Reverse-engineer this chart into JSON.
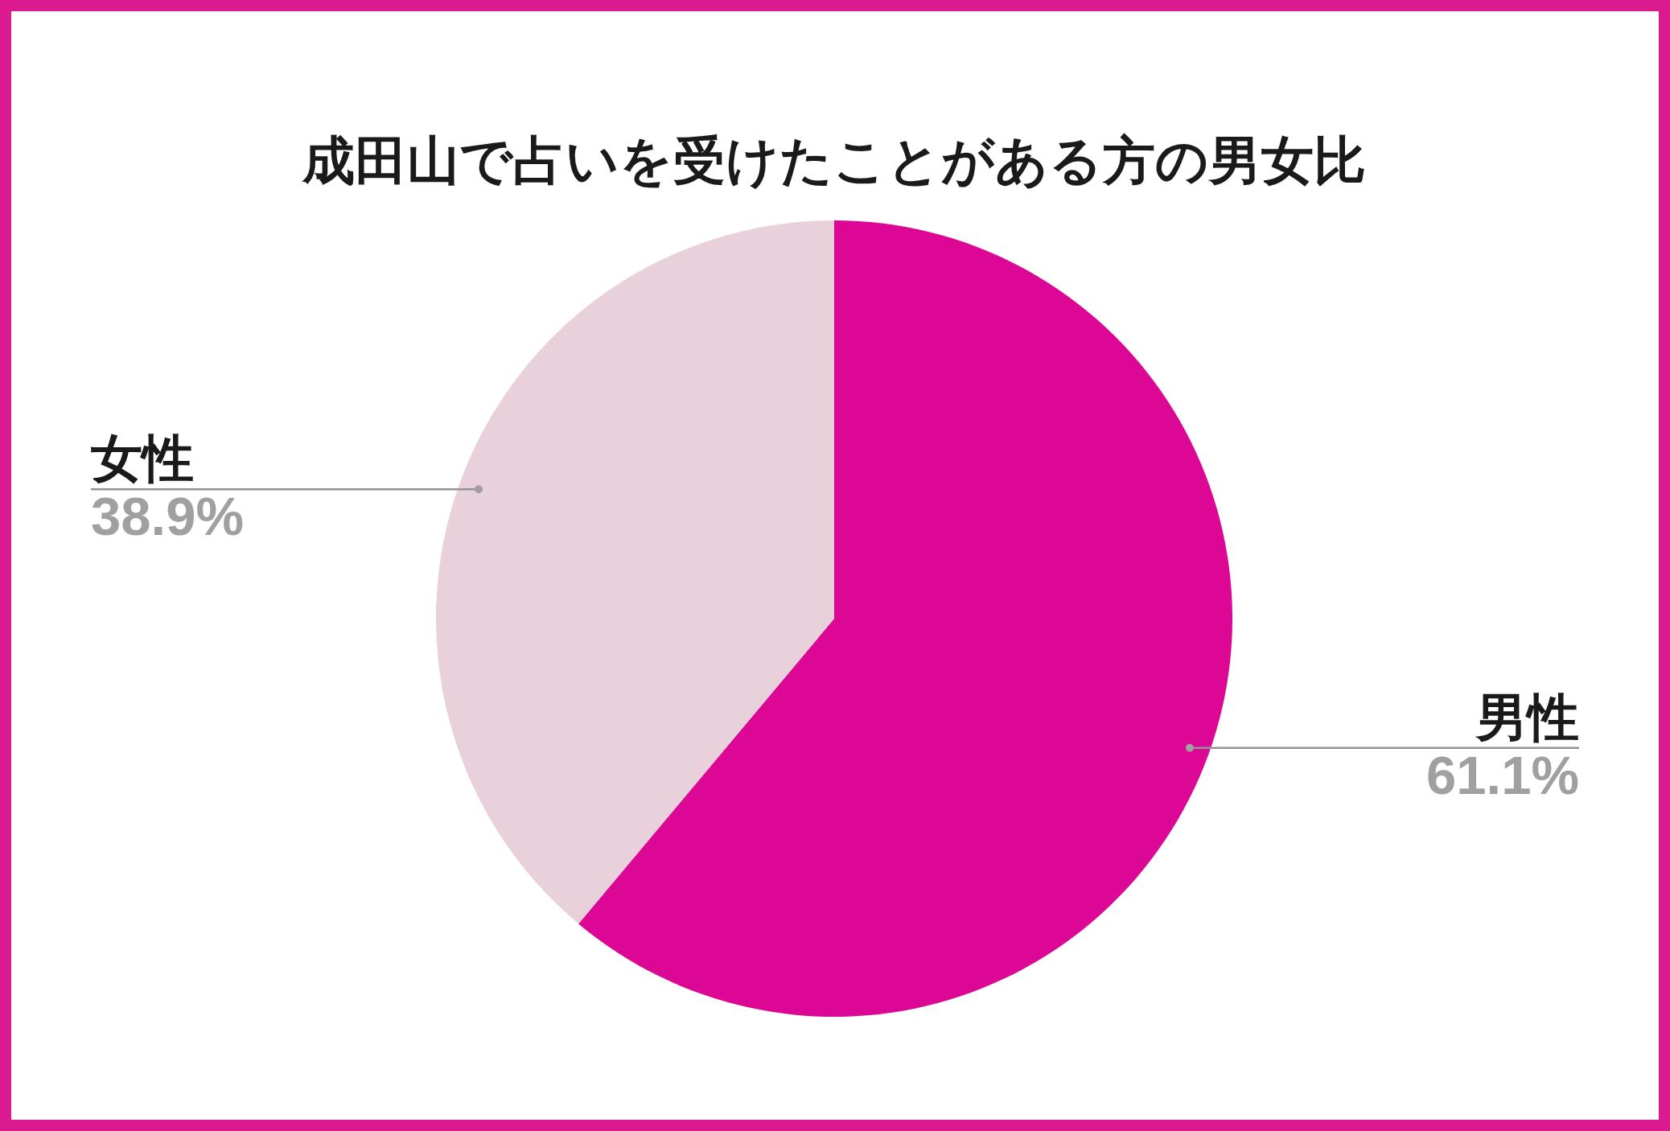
{
  "chart_data": {
    "type": "pie",
    "title": "成田山で占いを受けたことがある方の男女比",
    "categories": [
      "男性",
      "女性"
    ],
    "values": [
      61.1,
      38.9
    ],
    "colors": [
      "#dc0794",
      "#e9d1dc"
    ],
    "value_labels": [
      "61.1%",
      "38.9%"
    ]
  }
}
